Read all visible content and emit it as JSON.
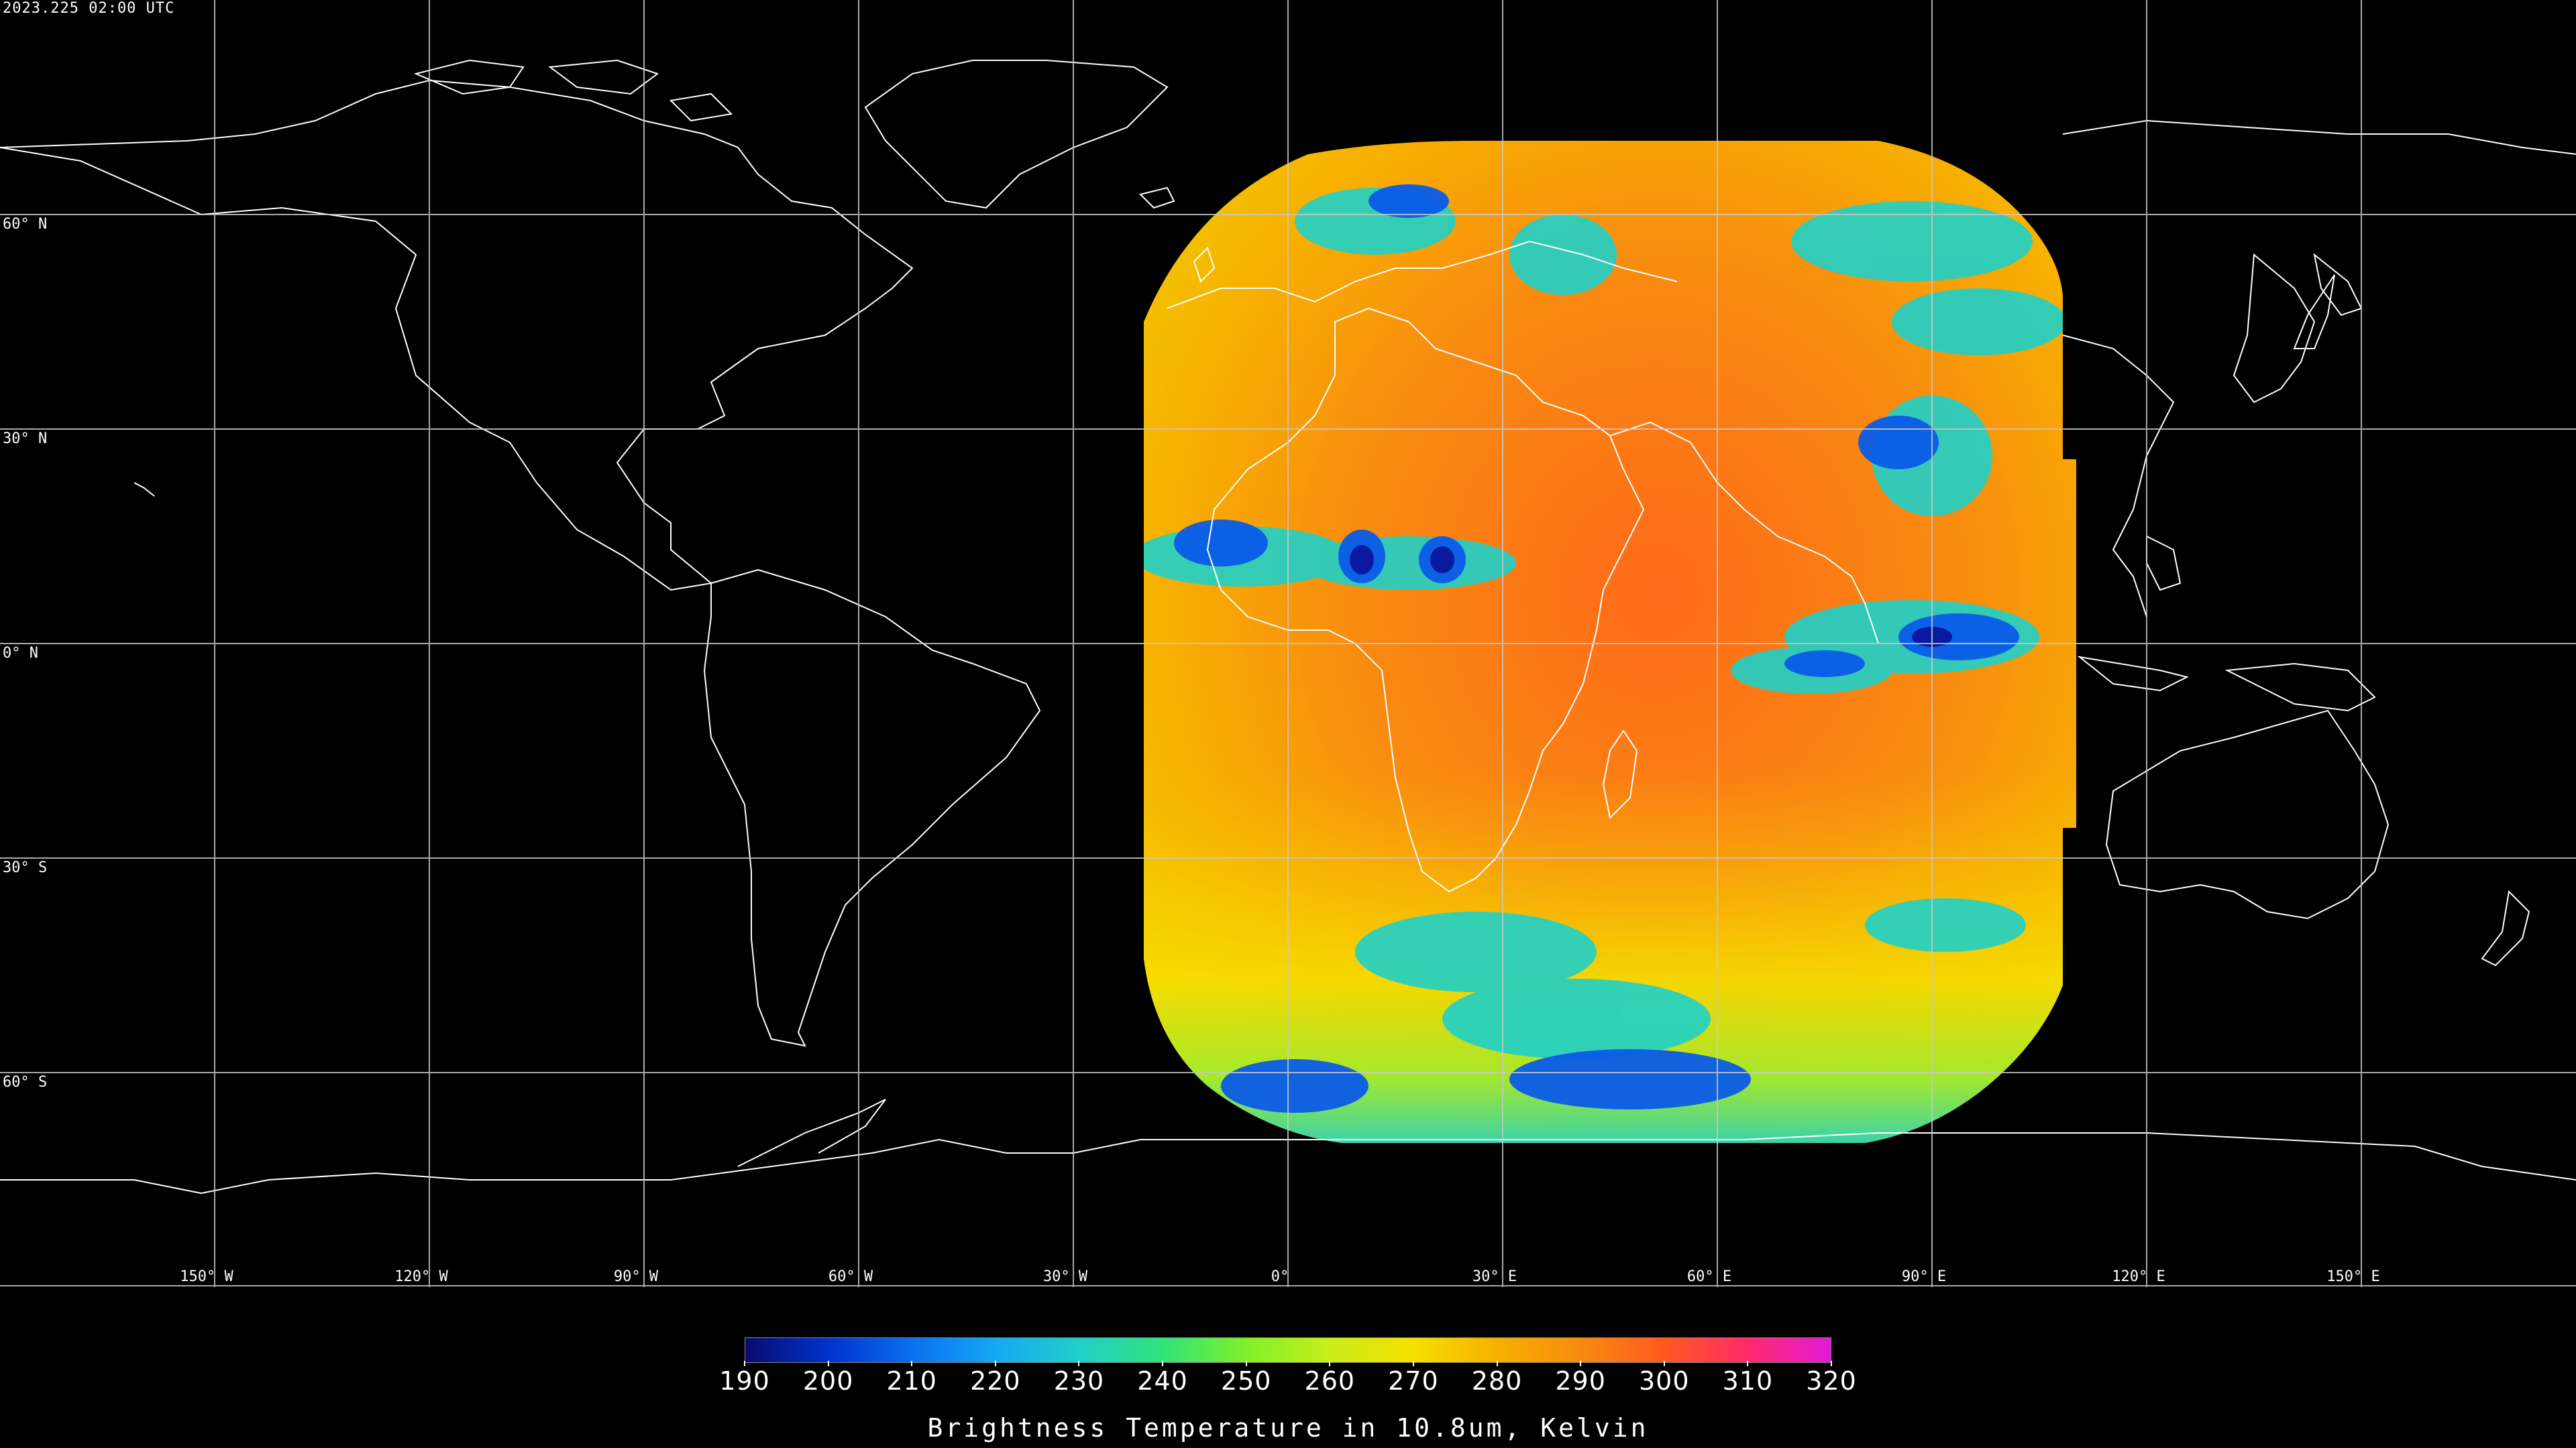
{
  "timestamp": "2023.225 02:00 UTC",
  "lat_labels": [
    "60° N",
    "30° N",
    "0° N",
    "30° S",
    "60° S"
  ],
  "lon_labels": [
    "150° W",
    "120° W",
    "90° W",
    "60° W",
    "30° W",
    "0°",
    "30° E",
    "60° E",
    "90° E",
    "120° E",
    "150° E"
  ],
  "colorbar": {
    "title": "Brightness Temperature in 10.8um, Kelvin",
    "ticks": [
      "190",
      "200",
      "210",
      "220",
      "230",
      "240",
      "250",
      "260",
      "270",
      "280",
      "290",
      "300",
      "310",
      "320"
    ],
    "min": 190,
    "max": 320,
    "colors": [
      "#0a0a6e",
      "#0033cc",
      "#0a6ff0",
      "#16a8f5",
      "#1fd0c8",
      "#2fe37a",
      "#7ff02a",
      "#c9ee18",
      "#f6e000",
      "#f7b000",
      "#f88a10",
      "#ff5a1e",
      "#ff2a6a",
      "#e21ad8"
    ]
  },
  "palette": {
    "background": "#000000",
    "coastline": "#ffffff",
    "grid": "#c8c8c8",
    "disk_warm": "#f88a10",
    "disk_hot": "#ff6a1a",
    "cloud_cold": "#0a5be8",
    "cloud_very_cold": "#0a1aa0",
    "cloud_mid": "#1fd0c8"
  }
}
